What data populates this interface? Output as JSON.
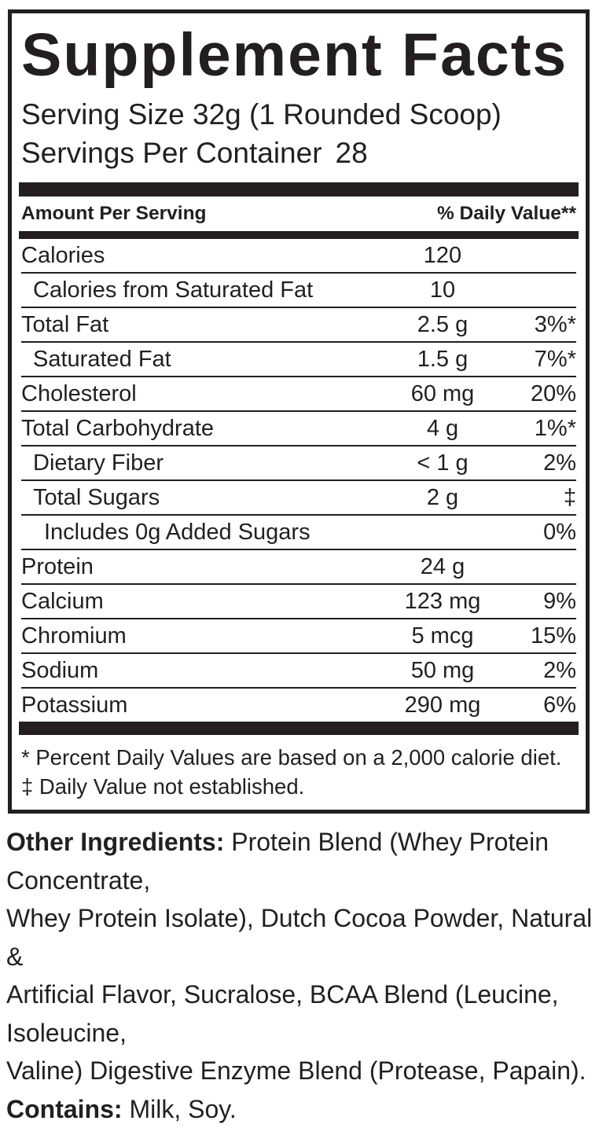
{
  "colors": {
    "ink": "#231f20",
    "background": "#ffffff"
  },
  "panel": {
    "title": "Supplement Facts",
    "serving_size": "Serving Size 32g (1 Rounded Scoop)",
    "servings_per_container_label": "Servings Per Container",
    "servings_per_container_value": "28",
    "header": {
      "left": "Amount Per Serving",
      "right": "% Daily Value**"
    },
    "rows": [
      {
        "label": "Calories",
        "indent": 0,
        "amount": "120",
        "dv": ""
      },
      {
        "label": "Calories from Saturated Fat",
        "indent": 1,
        "amount": "10",
        "dv": ""
      },
      {
        "label": "Total Fat",
        "indent": 0,
        "amount": "2.5 g",
        "dv": "3%*"
      },
      {
        "label": "Saturated Fat",
        "indent": 1,
        "amount": "1.5 g",
        "dv": "7%*"
      },
      {
        "label": "Cholesterol",
        "indent": 0,
        "amount": "60 mg",
        "dv": "20%"
      },
      {
        "label": "Total Carbohydrate",
        "indent": 0,
        "amount": "4 g",
        "dv": "1%*"
      },
      {
        "label": "Dietary Fiber",
        "indent": 1,
        "amount": "< 1 g",
        "dv": "2%"
      },
      {
        "label": "Total Sugars",
        "indent": 1,
        "amount": "2 g",
        "dv": "‡"
      },
      {
        "label": "Includes 0g Added Sugars",
        "indent": 2,
        "amount": "",
        "dv": "0%"
      },
      {
        "label": "Protein",
        "indent": 0,
        "amount": "24 g",
        "dv": ""
      },
      {
        "label": "Calcium",
        "indent": 0,
        "amount": "123 mg",
        "dv": "9%"
      },
      {
        "label": "Chromium",
        "indent": 0,
        "amount": "5 mcg",
        "dv": "15%"
      },
      {
        "label": "Sodium",
        "indent": 0,
        "amount": "50 mg",
        "dv": "2%"
      },
      {
        "label": "Potassium",
        "indent": 0,
        "amount": "290 mg",
        "dv": "6%"
      }
    ],
    "footnotes": [
      "* Percent Daily Values are based on a 2,000 calorie diet.",
      "‡ Daily Value not established."
    ]
  },
  "other_ingredients": {
    "label": "Other Ingredients:",
    "lines": [
      "Protein Blend (Whey Protein Concentrate,",
      "Whey Protein Isolate), Dutch Cocoa Powder, Natural &",
      "Artificial Flavor, Sucralose, BCAA Blend (Leucine, Isoleucine,",
      "Valine) Digestive Enzyme Blend (Protease, Papain)."
    ],
    "contains_label": "Contains:",
    "contains_value": "Milk, Soy."
  }
}
